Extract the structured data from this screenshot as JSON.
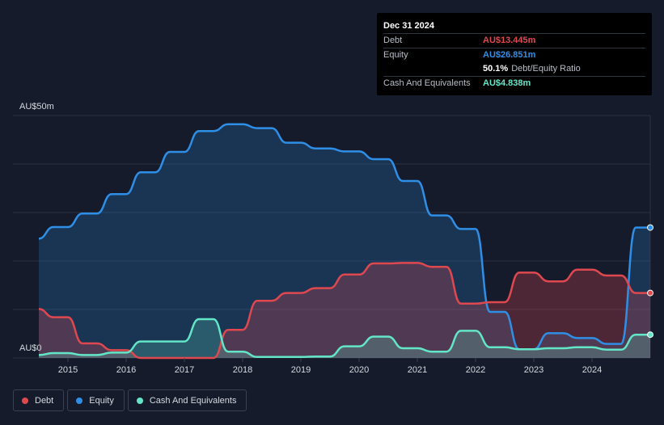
{
  "tooltip": {
    "date": "Dec 31 2024",
    "debt_label": "Debt",
    "debt_value": "AU$13.445m",
    "equity_label": "Equity",
    "equity_value": "AU$26.851m",
    "ratio_value": "50.1%",
    "ratio_label": "Debt/Equity Ratio",
    "cash_label": "Cash And Equivalents",
    "cash_value": "AU$4.838m"
  },
  "legend": [
    {
      "label": "Debt",
      "color": "#e0484f"
    },
    {
      "label": "Equity",
      "color": "#2f8fe6"
    },
    {
      "label": "Cash And Equivalents",
      "color": "#63e6c7"
    }
  ],
  "chart_data": {
    "type": "area",
    "y_top_label": "AU$50m",
    "y_bottom_label": "AU$0",
    "ylim": [
      0,
      50
    ],
    "xlim": [
      2014.5,
      2025.0
    ],
    "x_ticks": [
      "2015",
      "2016",
      "2017",
      "2018",
      "2019",
      "2020",
      "2021",
      "2022",
      "2023",
      "2024"
    ],
    "grid": true,
    "colors": {
      "debt": "#e0484f",
      "equity": "#2f8fe6",
      "cash": "#63e6c7"
    },
    "series": [
      {
        "name": "Equity",
        "x": [
          2014.5,
          2014.75,
          2015.0,
          2015.25,
          2015.5,
          2015.75,
          2016.0,
          2016.25,
          2016.5,
          2016.75,
          2017.0,
          2017.25,
          2017.5,
          2017.75,
          2018.0,
          2018.25,
          2018.5,
          2018.75,
          2019.0,
          2019.25,
          2019.5,
          2019.75,
          2020.0,
          2020.25,
          2020.5,
          2020.75,
          2021.0,
          2021.25,
          2021.5,
          2021.75,
          2022.0,
          2022.25,
          2022.5,
          2022.75,
          2023.0,
          2023.25,
          2023.5,
          2023.75,
          2024.0,
          2024.25,
          2024.5,
          2024.75,
          2025.0
        ],
        "values": [
          24.6,
          27.0,
          27.0,
          29.8,
          29.8,
          33.8,
          33.8,
          38.3,
          38.3,
          42.5,
          42.5,
          46.8,
          46.8,
          48.2,
          48.2,
          47.4,
          47.4,
          44.4,
          44.4,
          43.2,
          43.2,
          42.6,
          42.6,
          41.0,
          41.0,
          36.5,
          36.5,
          29.4,
          29.4,
          26.6,
          26.6,
          9.5,
          9.5,
          1.8,
          1.8,
          5.1,
          5.1,
          4.1,
          4.1,
          2.9,
          2.9,
          26.9,
          26.9
        ]
      },
      {
        "name": "Debt",
        "x": [
          2014.5,
          2014.75,
          2015.0,
          2015.25,
          2015.5,
          2015.75,
          2016.0,
          2016.25,
          2016.5,
          2016.75,
          2017.0,
          2017.25,
          2017.5,
          2017.75,
          2018.0,
          2018.25,
          2018.5,
          2018.75,
          2019.0,
          2019.25,
          2019.5,
          2019.75,
          2020.0,
          2020.25,
          2020.5,
          2020.75,
          2021.0,
          2021.25,
          2021.5,
          2021.75,
          2022.0,
          2022.25,
          2022.5,
          2022.75,
          2023.0,
          2023.25,
          2023.5,
          2023.75,
          2024.0,
          2024.25,
          2024.5,
          2024.75,
          2025.0
        ],
        "values": [
          10.1,
          8.4,
          8.4,
          3.0,
          3.0,
          1.6,
          1.6,
          0.0,
          0.0,
          0.0,
          0.0,
          0.0,
          0.0,
          5.8,
          5.8,
          11.8,
          11.8,
          13.4,
          13.4,
          14.4,
          14.4,
          17.2,
          17.2,
          19.5,
          19.5,
          19.6,
          19.6,
          18.8,
          18.8,
          11.2,
          11.2,
          11.5,
          11.5,
          17.6,
          17.6,
          15.8,
          15.8,
          18.2,
          18.2,
          17.0,
          17.0,
          13.4,
          13.4
        ]
      },
      {
        "name": "Cash And Equivalents",
        "x": [
          2014.5,
          2014.75,
          2015.0,
          2015.25,
          2015.5,
          2015.75,
          2016.0,
          2016.25,
          2016.5,
          2016.75,
          2017.0,
          2017.25,
          2017.5,
          2017.75,
          2018.0,
          2018.25,
          2018.5,
          2018.75,
          2019.0,
          2019.25,
          2019.5,
          2019.75,
          2020.0,
          2020.25,
          2020.5,
          2020.75,
          2021.0,
          2021.25,
          2021.5,
          2021.75,
          2022.0,
          2022.25,
          2022.5,
          2022.75,
          2023.0,
          2023.25,
          2023.5,
          2023.75,
          2024.0,
          2024.25,
          2024.5,
          2024.75,
          2025.0
        ],
        "values": [
          0.6,
          1.0,
          1.0,
          0.6,
          0.6,
          1.1,
          1.1,
          3.4,
          3.4,
          3.4,
          3.4,
          8.0,
          8.0,
          1.3,
          1.3,
          0.2,
          0.2,
          0.2,
          0.2,
          0.3,
          0.3,
          2.4,
          2.4,
          4.4,
          4.4,
          2.0,
          2.0,
          1.3,
          1.3,
          5.6,
          5.6,
          2.2,
          2.2,
          1.8,
          1.8,
          2.0,
          2.0,
          2.2,
          2.2,
          1.7,
          1.7,
          4.8,
          4.8
        ]
      }
    ]
  }
}
